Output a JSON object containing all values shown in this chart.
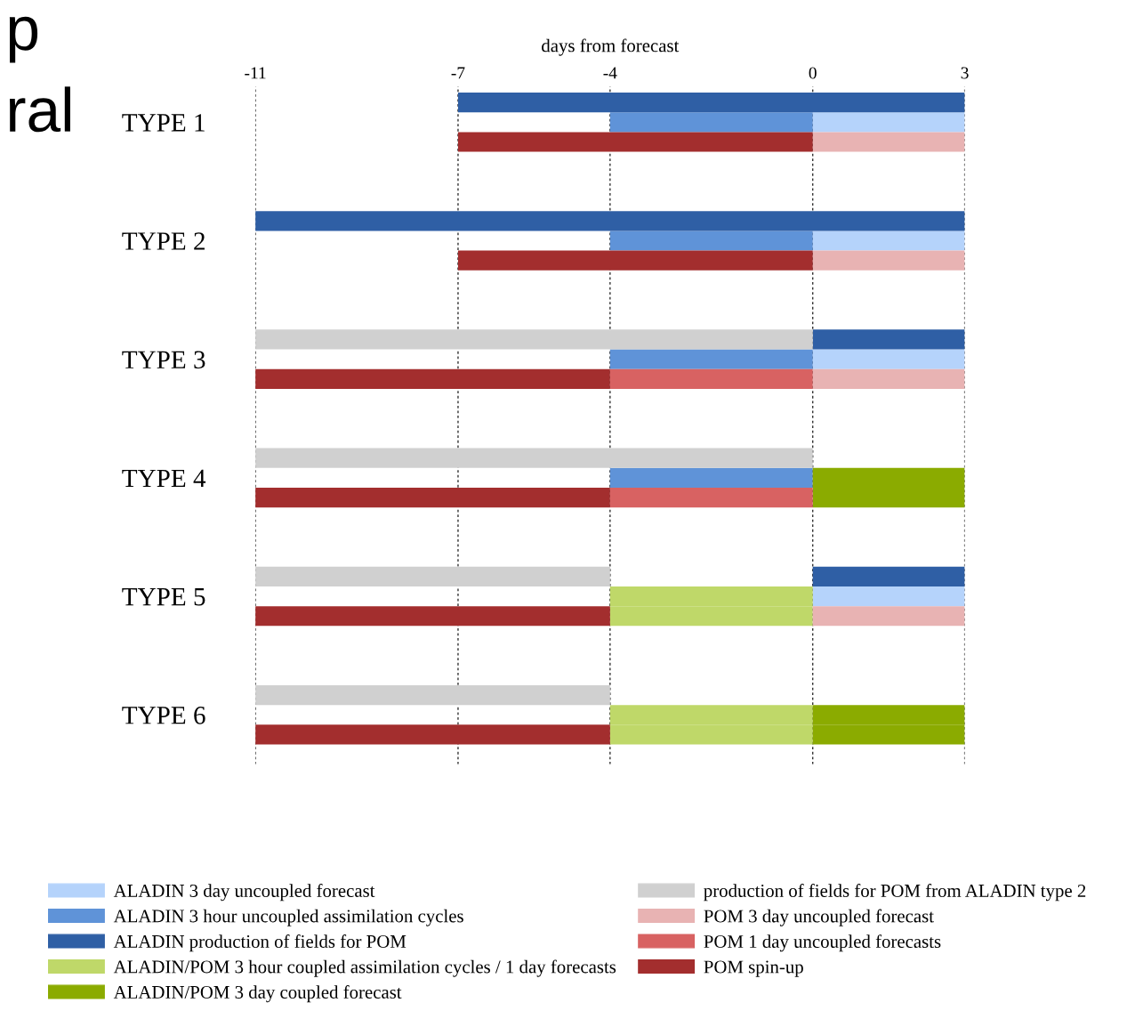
{
  "chart_data": {
    "type": "bar",
    "orientation": "horizontal",
    "xlabel": "days from forecast",
    "categories": [
      null,
      "TYPE 1",
      null,
      null,
      null,
      null,
      null,
      "TYPE 2",
      null,
      null,
      null,
      null,
      null,
      "TYPE 3",
      null,
      null,
      null,
      null,
      null,
      "TYPE 4",
      null,
      null,
      null,
      null,
      null,
      "TYPE 5",
      null,
      null,
      null,
      null,
      null,
      "TYPE 6",
      null,
      null,
      null,
      null
    ],
    "xlim": [
      -11,
      3
    ],
    "xticks": [
      -11,
      -7,
      -4,
      0,
      3
    ],
    "grid": "x",
    "legend": "bottom",
    "annotations": [
      "p",
      "ral"
    ],
    "series": [
      {
        "name": "ALADIN 3 day uncoupled forecast",
        "color": "#b5d3fb",
        "values": [
          null,
          3,
          null,
          null,
          null,
          null,
          null,
          3,
          null,
          null,
          null,
          null,
          null,
          3,
          null,
          null,
          null,
          null,
          null,
          null,
          null,
          null,
          null,
          null,
          null,
          3,
          null,
          null,
          null,
          null,
          null,
          null,
          null,
          null,
          null,
          null
        ],
        "base": [
          null,
          0,
          null,
          null,
          null,
          null,
          null,
          0,
          null,
          null,
          null,
          null,
          null,
          0,
          null,
          null,
          null,
          null,
          null,
          null,
          null,
          null,
          null,
          null,
          null,
          0,
          null,
          null,
          null,
          null,
          null,
          null,
          null,
          null,
          null,
          null
        ]
      },
      {
        "name": "ALADIN 3 hour uncoupled assimilation cycles",
        "color": "#5f93d8",
        "values": [
          null,
          4,
          null,
          null,
          null,
          null,
          null,
          4,
          null,
          null,
          null,
          null,
          null,
          4,
          null,
          null,
          null,
          null,
          null,
          4,
          null,
          null,
          null,
          null,
          null,
          null,
          null,
          null,
          null,
          null,
          null,
          null,
          null,
          null,
          null,
          null
        ],
        "base": [
          null,
          -4,
          null,
          null,
          null,
          null,
          null,
          -4,
          null,
          null,
          null,
          null,
          null,
          -4,
          null,
          null,
          null,
          null,
          null,
          -4,
          null,
          null,
          null,
          null,
          null,
          null,
          null,
          null,
          null,
          null,
          null,
          null,
          null,
          null,
          null,
          null
        ]
      },
      {
        "name": "ALADIN production of fields for POM",
        "color": "#2f5fa5",
        "values": [
          10,
          null,
          null,
          null,
          null,
          null,
          14,
          null,
          null,
          null,
          null,
          null,
          3,
          null,
          null,
          null,
          null,
          null,
          null,
          null,
          null,
          null,
          null,
          null,
          3,
          null,
          null,
          null,
          null,
          null,
          null,
          null,
          null,
          null,
          null,
          null
        ],
        "base": [
          -7,
          null,
          null,
          null,
          null,
          null,
          -11,
          null,
          null,
          null,
          null,
          null,
          0,
          null,
          null,
          null,
          null,
          null,
          null,
          null,
          null,
          null,
          null,
          null,
          0,
          null,
          null,
          null,
          null,
          null,
          null,
          null,
          null,
          null,
          null,
          null
        ]
      },
      {
        "name": "ALADIN/POM 3 hour coupled assimilation cycles / 1 day forecasts",
        "color": "#bfd869",
        "values": [
          null,
          null,
          null,
          null,
          null,
          null,
          null,
          null,
          null,
          null,
          null,
          null,
          null,
          null,
          null,
          null,
          null,
          null,
          null,
          null,
          null,
          null,
          null,
          null,
          null,
          4,
          4,
          null,
          null,
          null,
          null,
          4,
          4,
          null,
          null,
          null
        ],
        "base": [
          null,
          null,
          null,
          null,
          null,
          null,
          null,
          null,
          null,
          null,
          null,
          null,
          null,
          null,
          null,
          null,
          null,
          null,
          null,
          null,
          null,
          null,
          null,
          null,
          null,
          -4,
          -4,
          null,
          null,
          null,
          null,
          -4,
          -4,
          null,
          null,
          null
        ]
      },
      {
        "name": "ALADIN/POM 3 day coupled forecast",
        "color": "#8bab00",
        "values": [
          null,
          null,
          null,
          null,
          null,
          null,
          null,
          null,
          null,
          null,
          null,
          null,
          null,
          null,
          null,
          null,
          null,
          null,
          null,
          3,
          3,
          null,
          null,
          null,
          null,
          null,
          null,
          null,
          null,
          null,
          null,
          3,
          3,
          null,
          null,
          null
        ],
        "base": [
          null,
          null,
          null,
          null,
          null,
          null,
          null,
          null,
          null,
          null,
          null,
          null,
          null,
          null,
          null,
          null,
          null,
          null,
          null,
          0,
          0,
          null,
          null,
          null,
          null,
          null,
          null,
          null,
          null,
          null,
          null,
          0,
          0,
          null,
          null,
          null
        ]
      },
      {
        "name": "production of fields for POM from ALADIN type 2",
        "color": "#d0d0d0",
        "values": [
          null,
          null,
          null,
          null,
          null,
          null,
          null,
          null,
          null,
          null,
          null,
          null,
          11,
          null,
          null,
          null,
          null,
          null,
          11,
          null,
          null,
          null,
          null,
          null,
          7,
          null,
          null,
          null,
          null,
          null,
          7,
          null,
          null,
          null,
          null,
          null
        ],
        "base": [
          null,
          null,
          null,
          null,
          null,
          null,
          null,
          null,
          null,
          null,
          null,
          null,
          -11,
          null,
          null,
          null,
          null,
          null,
          -11,
          null,
          null,
          null,
          null,
          null,
          -11,
          null,
          null,
          null,
          null,
          null,
          -11,
          null,
          null,
          null,
          null,
          null
        ]
      },
      {
        "name": "POM 3 day uncoupled forecast",
        "color": "#e8b3b3",
        "values": [
          null,
          null,
          3,
          null,
          null,
          null,
          null,
          null,
          3,
          null,
          null,
          null,
          null,
          null,
          3,
          null,
          null,
          null,
          null,
          null,
          null,
          null,
          null,
          null,
          null,
          null,
          3,
          null,
          null,
          null,
          null,
          null,
          null,
          null,
          null,
          null
        ],
        "base": [
          null,
          null,
          0,
          null,
          null,
          null,
          null,
          null,
          0,
          null,
          null,
          null,
          null,
          null,
          0,
          null,
          null,
          null,
          null,
          null,
          null,
          null,
          null,
          null,
          null,
          null,
          0,
          null,
          null,
          null,
          null,
          null,
          null,
          null,
          null,
          null
        ]
      },
      {
        "name": "POM 1 day uncoupled forecasts",
        "color": "#d86262",
        "values": [
          null,
          null,
          null,
          null,
          null,
          null,
          null,
          null,
          null,
          null,
          null,
          null,
          null,
          null,
          4,
          null,
          null,
          null,
          null,
          null,
          4,
          null,
          null,
          null,
          null,
          null,
          null,
          null,
          null,
          null,
          null,
          null,
          null,
          null,
          null,
          null
        ],
        "base": [
          null,
          null,
          null,
          null,
          null,
          null,
          null,
          null,
          null,
          null,
          null,
          null,
          null,
          null,
          -4,
          null,
          null,
          null,
          null,
          null,
          -4,
          null,
          null,
          null,
          null,
          null,
          null,
          null,
          null,
          null,
          null,
          null,
          null,
          null,
          null,
          null
        ]
      },
      {
        "name": "POM spin-up",
        "color": "#a32e2e",
        "values": [
          null,
          null,
          7,
          null,
          null,
          null,
          null,
          null,
          7,
          null,
          null,
          null,
          null,
          null,
          7,
          null,
          null,
          null,
          null,
          null,
          7,
          null,
          null,
          null,
          null,
          null,
          7,
          null,
          null,
          null,
          null,
          null,
          7,
          null,
          null,
          null
        ],
        "base": [
          null,
          null,
          -7,
          null,
          null,
          null,
          null,
          null,
          -7,
          null,
          null,
          null,
          null,
          null,
          -11,
          null,
          null,
          null,
          null,
          null,
          -11,
          null,
          null,
          null,
          null,
          null,
          -11,
          null,
          null,
          null,
          null,
          null,
          -11,
          null,
          null,
          null
        ]
      }
    ]
  }
}
